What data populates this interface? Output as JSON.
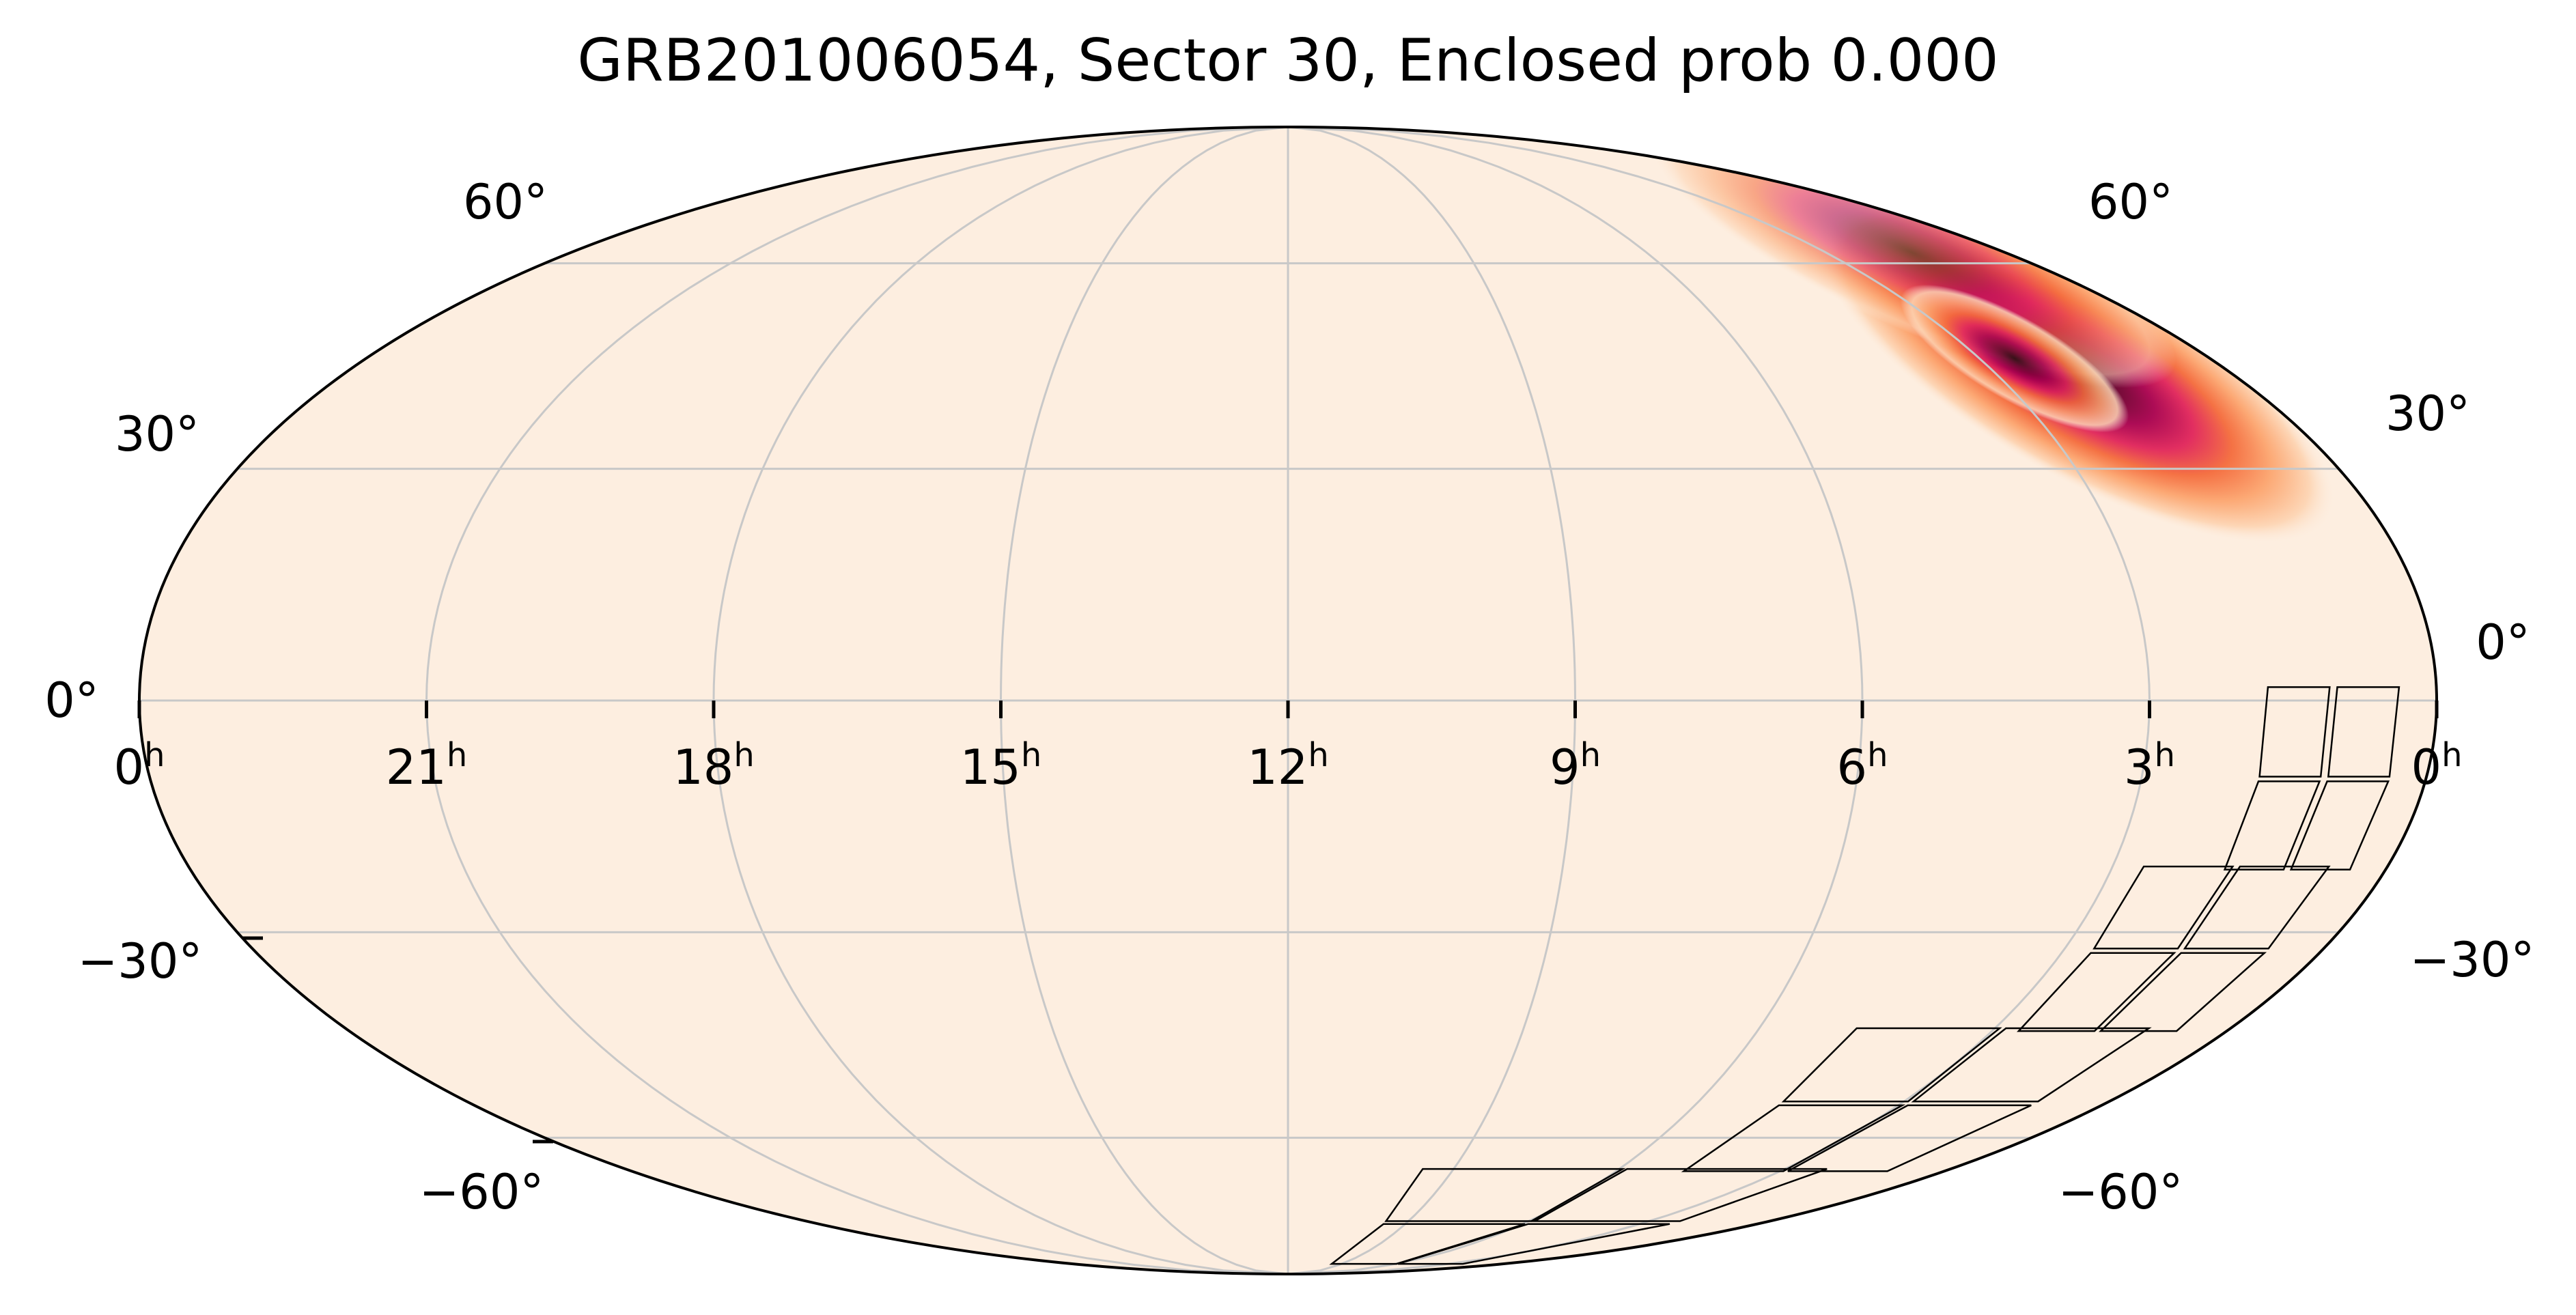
{
  "title": "GRB201006054, Sector 30, Enclosed prob 0.000",
  "projection": "mollweide",
  "colors": {
    "background": "#fdeee0",
    "graticule": "#c8c8c8",
    "footprint": "#000000",
    "colormap": [
      "#fdeee0",
      "#fdd5b4",
      "#fca56f",
      "#f46b3c",
      "#e0245a",
      "#a8004e",
      "#5c0026",
      "#1a0005"
    ]
  },
  "ra_labels": [
    "0h",
    "21h",
    "18h",
    "15h",
    "12h",
    "9h",
    "6h",
    "3h",
    "0h"
  ],
  "ra_values_hours": [
    24,
    21,
    18,
    15,
    12,
    9,
    6,
    3,
    0
  ],
  "dec_labels_left": [
    "60°",
    "30°",
    "0°",
    "−30°",
    "−60°"
  ],
  "dec_labels_right": [
    "60°",
    "30°",
    "0°",
    "−30°",
    "−60°"
  ],
  "dec_values": [
    60,
    30,
    0,
    -30,
    -60
  ],
  "probability_blob": {
    "ra_center_hours": 4.0,
    "dec_center_deg": 48,
    "shape": "elongated along great circle"
  },
  "footprint": {
    "name": "TESS Sector 30 camera footprint",
    "cameras": 4,
    "ccds_per_camera": 4,
    "ra_range_hours": [
      0.3,
      9.5
    ],
    "dec_range_deg": [
      -85,
      -5
    ]
  }
}
